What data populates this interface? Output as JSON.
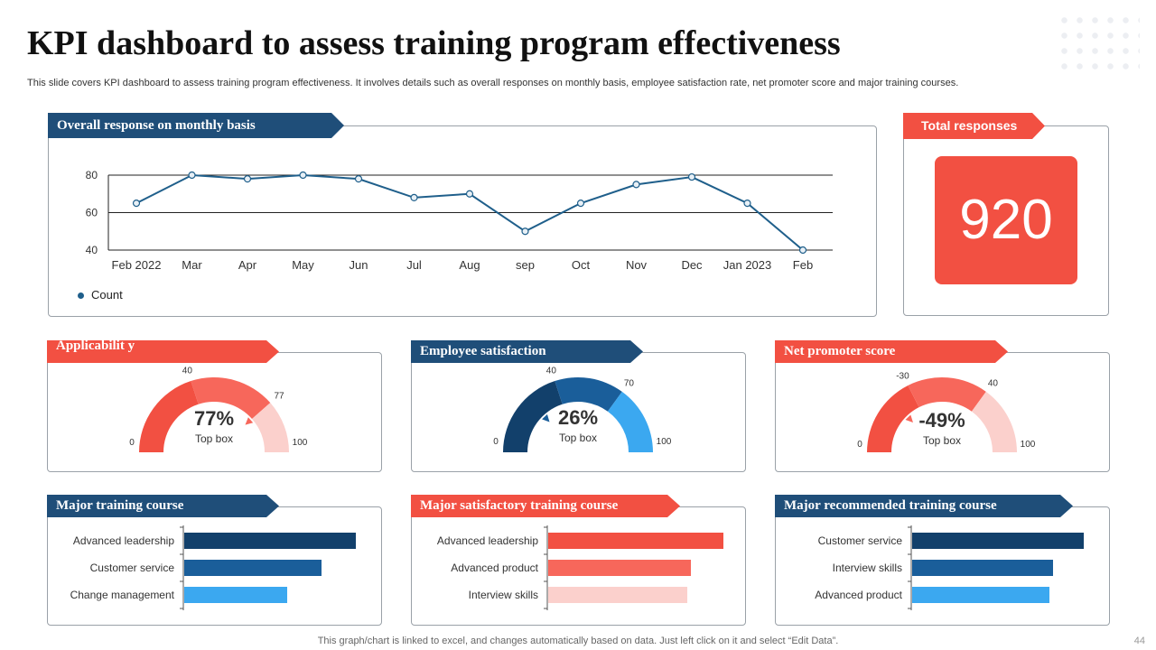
{
  "title": "KPI dashboard to assess training program effectiveness",
  "subtitle": "This slide covers KPI dashboard to assess training program effectiveness. It involves details such as overall responses on monthly basis, employee satisfaction rate, net promoter score and major training courses.",
  "footer": "This graph/chart is linked to excel,  and changes automatically based on data. Just left click on it and select “Edit Data”.",
  "page_number": "44",
  "colors": {
    "navy": "#1f4e79",
    "red": "#f25042",
    "mid_blue": "#1a5e9a",
    "light_blue": "#3ba8f0",
    "salmon": "#f7675b",
    "pale_pink": "#fbd0cc"
  },
  "panels": {
    "monthly": {
      "title": "Overall response on monthly basis"
    },
    "total": {
      "title": "Total responses",
      "value": "920"
    },
    "applicability": {
      "title": "Applicabilit y"
    },
    "satisfaction": {
      "title": "Employee satisfaction"
    },
    "nps": {
      "title": "Net promoter score"
    },
    "major_training": {
      "title": "Major training course"
    },
    "major_satisfactory": {
      "title": "Major satisfactory training course"
    },
    "major_recommended": {
      "title": "Major recommended training course"
    }
  },
  "chart_data": [
    {
      "id": "monthly",
      "type": "line",
      "categories": [
        "Feb  2022",
        "Mar",
        "Apr",
        "May",
        "Jun",
        "Jul",
        "Aug",
        "sep",
        "Oct",
        "Nov",
        "Dec",
        "Jan 2023",
        "Feb"
      ],
      "series": [
        {
          "name": "Count",
          "values": [
            65,
            80,
            78,
            80,
            78,
            68,
            70,
            50,
            65,
            75,
            79,
            65,
            40
          ]
        }
      ],
      "ylim": [
        40,
        80
      ],
      "yticks": [
        "40",
        "60",
        "80"
      ],
      "legend": "bottom-left"
    },
    {
      "id": "applicability",
      "type": "gauge",
      "value": "77%",
      "sublabel": "Top box",
      "min_label": "0",
      "max_label": "100",
      "band_labels": [
        "40",
        "77"
      ],
      "bands": [
        {
          "from": 0,
          "to": 40
        },
        {
          "from": 40,
          "to": 77
        },
        {
          "from": 77,
          "to": 100
        }
      ],
      "band_colors": [
        "#f25042",
        "#f7675b",
        "#fbd0cc"
      ],
      "range": [
        0,
        100
      ],
      "marker": 77
    },
    {
      "id": "satisfaction",
      "type": "gauge",
      "value": "26%",
      "sublabel": "Top box",
      "min_label": "0",
      "max_label": "100",
      "band_labels": [
        "40",
        "70"
      ],
      "bands": [
        {
          "from": 0,
          "to": 40
        },
        {
          "from": 40,
          "to": 70
        },
        {
          "from": 70,
          "to": 100
        }
      ],
      "band_colors": [
        "#12406b",
        "#1a5e9a",
        "#3ba8f0"
      ],
      "range": [
        0,
        100
      ],
      "marker": 26
    },
    {
      "id": "nps",
      "type": "gauge",
      "value": "-49%",
      "sublabel": "Top box",
      "min_label": "0",
      "max_label": "100",
      "band_labels": [
        "-30",
        "40"
      ],
      "bands": [
        {
          "from": -100,
          "to": -30
        },
        {
          "from": -30,
          "to": 40
        },
        {
          "from": 40,
          "to": 100
        }
      ],
      "band_colors": [
        "#f25042",
        "#f7675b",
        "#fbd0cc"
      ],
      "range": [
        -100,
        100
      ],
      "marker": -49
    },
    {
      "id": "major_training",
      "type": "bar",
      "orientation": "horizontal",
      "categories": [
        "Advanced leadership",
        "Customer service",
        "Change management"
      ],
      "values": [
        95,
        76,
        57
      ],
      "xlim": [
        0,
        100
      ],
      "colors": [
        "#12406b",
        "#1a5e9a",
        "#3ba8f0"
      ]
    },
    {
      "id": "major_satisfactory",
      "type": "bar",
      "orientation": "horizontal",
      "categories": [
        "Advanced leadership",
        "Advanced product",
        "Interview skills"
      ],
      "values": [
        97,
        79,
        77
      ],
      "xlim": [
        0,
        100
      ],
      "colors": [
        "#f25042",
        "#f7675b",
        "#fbd0cc"
      ]
    },
    {
      "id": "major_recommended",
      "type": "bar",
      "orientation": "horizontal",
      "categories": [
        "Customer service",
        "Interview skills",
        "Advanced product"
      ],
      "values": [
        95,
        78,
        76
      ],
      "xlim": [
        0,
        100
      ],
      "colors": [
        "#12406b",
        "#1a5e9a",
        "#3ba8f0"
      ]
    }
  ]
}
